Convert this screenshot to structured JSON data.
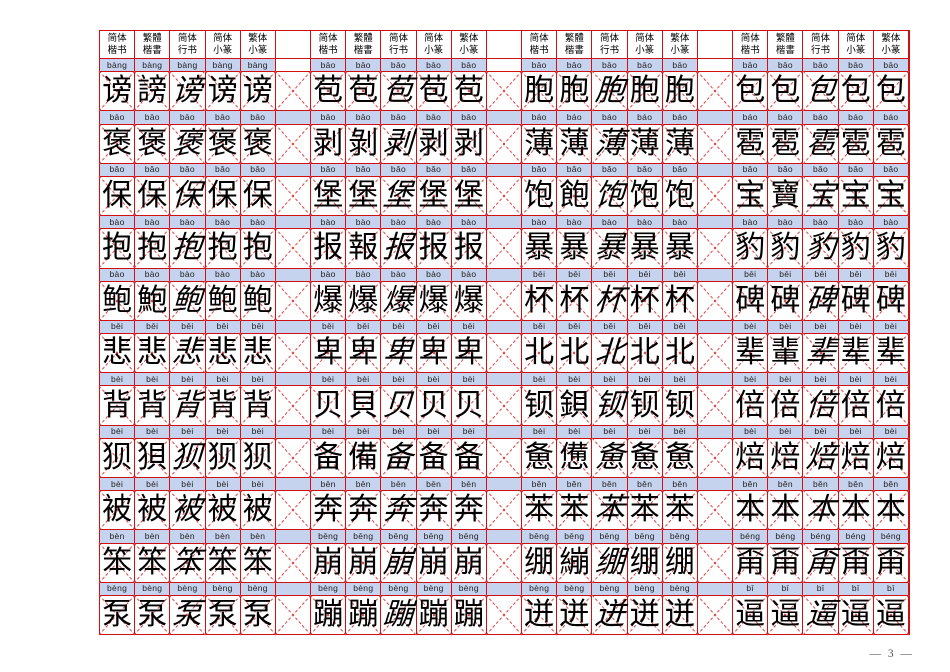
{
  "page": {
    "number_label": "—  3  —"
  },
  "colors": {
    "grid_red": "#d01010",
    "dash_red": "#e24444",
    "band_blue": "#c6d3ee",
    "text_black": "#000000",
    "page_num_gray": "#555555"
  },
  "sheet": {
    "columns_per_group": 5,
    "group_count": 4,
    "style_headers": [
      {
        "line1": "简体",
        "line2": "楷书"
      },
      {
        "line1": "繁體",
        "line2": "楷書"
      },
      {
        "line1": "简体",
        "line2": "行书"
      },
      {
        "line1": "简体",
        "line2": "小篆"
      },
      {
        "line1": "繁体",
        "line2": "小篆"
      }
    ],
    "rows": [
      {
        "groups": [
          {
            "pinyin": "bàng",
            "chars": [
              "谤",
              "謗",
              "谤",
              "谤",
              "谤"
            ]
          },
          {
            "pinyin": "bāo",
            "chars": [
              "苞",
              "苞",
              "苞",
              "苞",
              "苞"
            ]
          },
          {
            "pinyin": "bāo",
            "chars": [
              "胞",
              "胞",
              "胞",
              "胞",
              "胞"
            ]
          },
          {
            "pinyin": "bāo",
            "chars": [
              "包",
              "包",
              "包",
              "包",
              "包"
            ]
          }
        ]
      },
      {
        "groups": [
          {
            "pinyin": "bāo",
            "chars": [
              "褒",
              "褒",
              "褒",
              "褒",
              "褒"
            ]
          },
          {
            "pinyin": "bāo",
            "chars": [
              "剥",
              "剝",
              "剥",
              "剥",
              "剥"
            ]
          },
          {
            "pinyin": "báo",
            "chars": [
              "薄",
              "薄",
              "薄",
              "薄",
              "薄"
            ]
          },
          {
            "pinyin": "báo",
            "chars": [
              "雹",
              "雹",
              "雹",
              "雹",
              "雹"
            ]
          }
        ]
      },
      {
        "groups": [
          {
            "pinyin": "bǎo",
            "chars": [
              "保",
              "保",
              "保",
              "保",
              "保"
            ]
          },
          {
            "pinyin": "bǎo",
            "chars": [
              "堡",
              "堡",
              "堡",
              "堡",
              "堡"
            ]
          },
          {
            "pinyin": "bǎo",
            "chars": [
              "饱",
              "飽",
              "饱",
              "饱",
              "饱"
            ]
          },
          {
            "pinyin": "bǎo",
            "chars": [
              "宝",
              "寶",
              "宝",
              "宝",
              "宝"
            ]
          }
        ]
      },
      {
        "groups": [
          {
            "pinyin": "bào",
            "chars": [
              "抱",
              "抱",
              "抱",
              "抱",
              "抱"
            ]
          },
          {
            "pinyin": "bào",
            "chars": [
              "报",
              "報",
              "报",
              "报",
              "报"
            ]
          },
          {
            "pinyin": "bào",
            "chars": [
              "暴",
              "暴",
              "暴",
              "暴",
              "暴"
            ]
          },
          {
            "pinyin": "bào",
            "chars": [
              "豹",
              "豹",
              "豹",
              "豹",
              "豹"
            ]
          }
        ]
      },
      {
        "groups": [
          {
            "pinyin": "bào",
            "chars": [
              "鲍",
              "鮑",
              "鲍",
              "鲍",
              "鲍"
            ]
          },
          {
            "pinyin": "bào",
            "chars": [
              "爆",
              "爆",
              "爆",
              "爆",
              "爆"
            ]
          },
          {
            "pinyin": "bēi",
            "chars": [
              "杯",
              "杯",
              "杯",
              "杯",
              "杯"
            ]
          },
          {
            "pinyin": "bēi",
            "chars": [
              "碑",
              "碑",
              "碑",
              "碑",
              "碑"
            ]
          }
        ]
      },
      {
        "groups": [
          {
            "pinyin": "bēi",
            "chars": [
              "悲",
              "悲",
              "悲",
              "悲",
              "悲"
            ]
          },
          {
            "pinyin": "bēi",
            "chars": [
              "卑",
              "卑",
              "卑",
              "卑",
              "卑"
            ]
          },
          {
            "pinyin": "běi",
            "chars": [
              "北",
              "北",
              "北",
              "北",
              "北"
            ]
          },
          {
            "pinyin": "bèi",
            "chars": [
              "辈",
              "輩",
              "辈",
              "辈",
              "辈"
            ]
          }
        ]
      },
      {
        "groups": [
          {
            "pinyin": "bèi",
            "chars": [
              "背",
              "背",
              "背",
              "背",
              "背"
            ]
          },
          {
            "pinyin": "bèi",
            "chars": [
              "贝",
              "貝",
              "贝",
              "贝",
              "贝"
            ]
          },
          {
            "pinyin": "bèi",
            "chars": [
              "钡",
              "鋇",
              "钡",
              "钡",
              "钡"
            ]
          },
          {
            "pinyin": "bèi",
            "chars": [
              "倍",
              "倍",
              "倍",
              "倍",
              "倍"
            ]
          }
        ]
      },
      {
        "groups": [
          {
            "pinyin": "bèi",
            "chars": [
              "狈",
              "狽",
              "狈",
              "狈",
              "狈"
            ]
          },
          {
            "pinyin": "bèi",
            "chars": [
              "备",
              "備",
              "备",
              "备",
              "备"
            ]
          },
          {
            "pinyin": "bèi",
            "chars": [
              "惫",
              "憊",
              "惫",
              "惫",
              "惫"
            ]
          },
          {
            "pinyin": "bèi",
            "chars": [
              "焙",
              "焙",
              "焙",
              "焙",
              "焙"
            ]
          }
        ]
      },
      {
        "groups": [
          {
            "pinyin": "bèi",
            "chars": [
              "被",
              "被",
              "被",
              "被",
              "被"
            ]
          },
          {
            "pinyin": "bēn",
            "chars": [
              "奔",
              "奔",
              "奔",
              "奔",
              "奔"
            ]
          },
          {
            "pinyin": "běn",
            "chars": [
              "苯",
              "苯",
              "苯",
              "苯",
              "苯"
            ]
          },
          {
            "pinyin": "běn",
            "chars": [
              "本",
              "本",
              "本",
              "本",
              "本"
            ]
          }
        ]
      },
      {
        "groups": [
          {
            "pinyin": "bèn",
            "chars": [
              "笨",
              "笨",
              "笨",
              "笨",
              "笨"
            ]
          },
          {
            "pinyin": "bēng",
            "chars": [
              "崩",
              "崩",
              "崩",
              "崩",
              "崩"
            ]
          },
          {
            "pinyin": "bēng",
            "chars": [
              "绷",
              "繃",
              "绷",
              "绷",
              "绷"
            ]
          },
          {
            "pinyin": "béng",
            "chars": [
              "甭",
              "甭",
              "甭",
              "甭",
              "甭"
            ]
          }
        ]
      },
      {
        "groups": [
          {
            "pinyin": "bèng",
            "chars": [
              "泵",
              "泵",
              "泵",
              "泵",
              "泵"
            ]
          },
          {
            "pinyin": "bèng",
            "chars": [
              "蹦",
              "蹦",
              "蹦",
              "蹦",
              "蹦"
            ]
          },
          {
            "pinyin": "bèng",
            "chars": [
              "迸",
              "迸",
              "迸",
              "迸",
              "迸"
            ]
          },
          {
            "pinyin": "bī",
            "chars": [
              "逼",
              "逼",
              "逼",
              "逼",
              "逼"
            ]
          }
        ]
      }
    ]
  }
}
